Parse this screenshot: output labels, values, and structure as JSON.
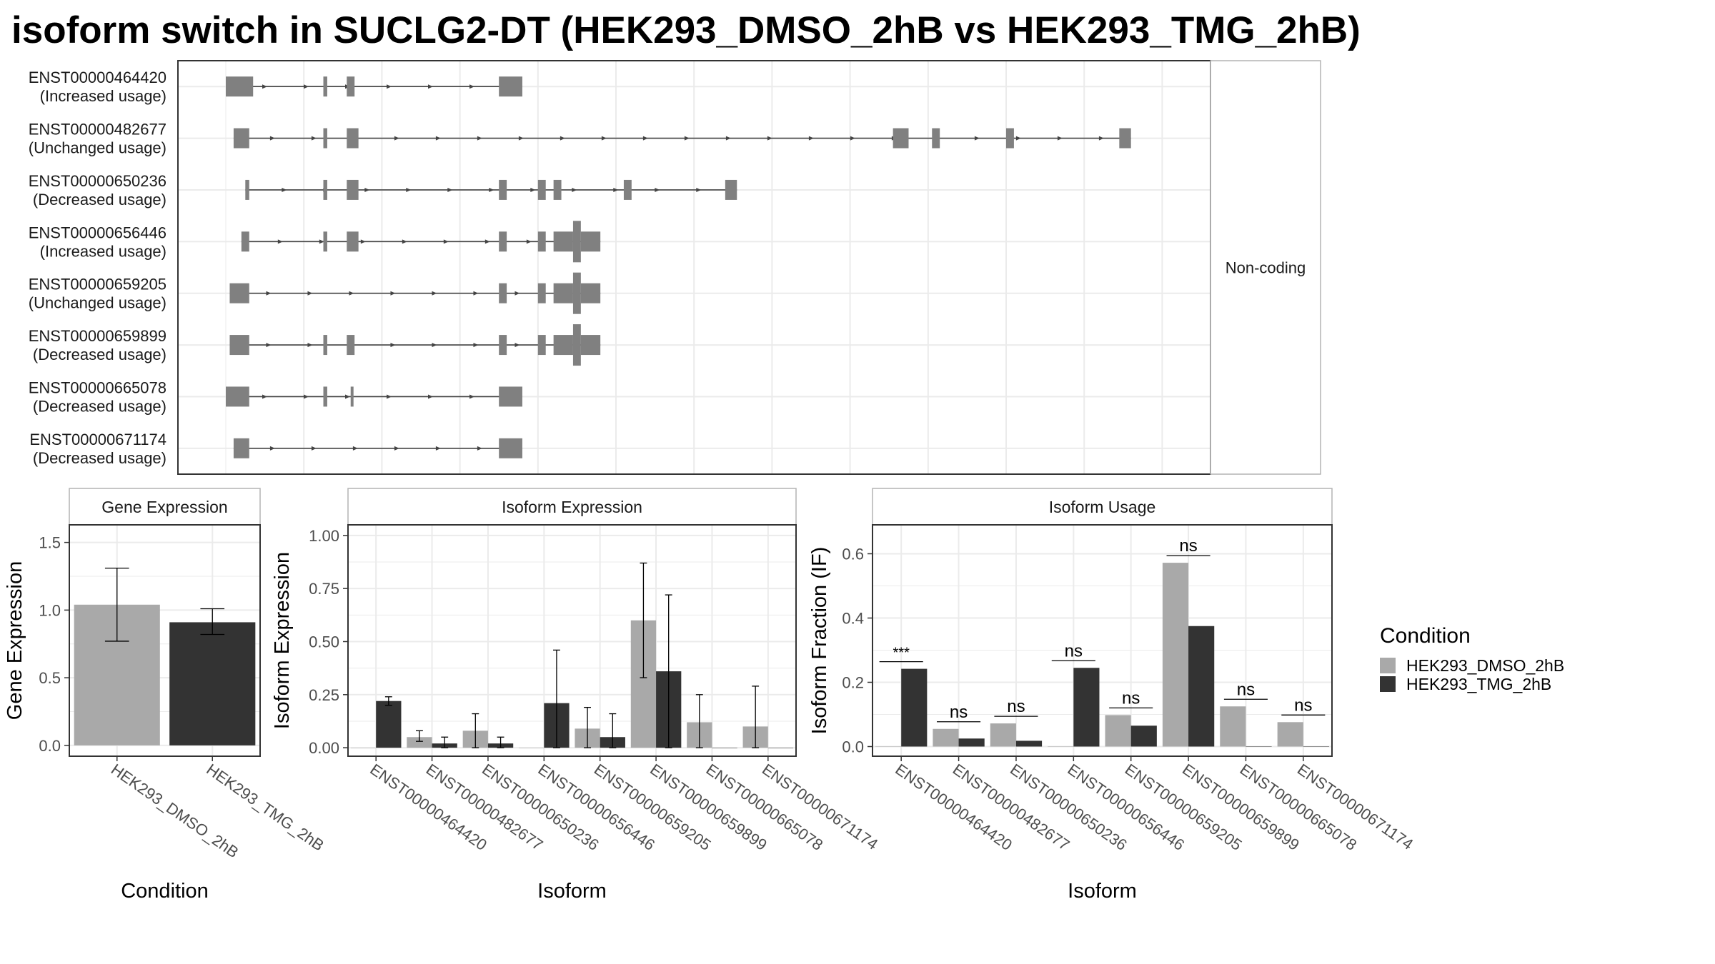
{
  "title": "isoform switch in SUCLG2-DT (HEK293_DMSO_2hB vs HEK293_TMG_2hB)",
  "colors": {
    "exon": "#808080",
    "intron": "#444444",
    "dmso": "#a9a9a9",
    "tmg": "#333333",
    "grid": "#ebebeb",
    "panel_border": "#333333",
    "strip_fill": "#ffffff"
  },
  "chart_data": [
    {
      "id": "transcript_structure",
      "type": "diagram",
      "facet_label": "Non-coding",
      "transcripts": [
        {
          "id": "ENST00000464420",
          "usage": "(Increased usage)",
          "exons": [
            [
              0,
              0.7,
              "n"
            ],
            [
              2.5,
              2.6,
              "n"
            ],
            [
              3.1,
              3.3,
              "n"
            ],
            [
              7.0,
              7.6,
              "n"
            ]
          ]
        },
        {
          "id": "ENST00000482677",
          "usage": "(Unchanged usage)",
          "exons": [
            [
              0.2,
              0.6,
              "n"
            ],
            [
              2.5,
              2.6,
              "n"
            ],
            [
              3.1,
              3.4,
              "n"
            ],
            [
              17.1,
              17.5,
              "n"
            ],
            [
              18.1,
              18.3,
              "n"
            ],
            [
              20.0,
              20.2,
              "n"
            ],
            [
              22.9,
              23.2,
              "n"
            ]
          ]
        },
        {
          "id": "ENST00000650236",
          "usage": "(Decreased usage)",
          "exons": [
            [
              0.5,
              0.6,
              "n"
            ],
            [
              2.5,
              2.6,
              "n"
            ],
            [
              3.1,
              3.4,
              "n"
            ],
            [
              7.0,
              7.2,
              "n"
            ],
            [
              8.0,
              8.2,
              "n"
            ],
            [
              8.4,
              8.6,
              "n"
            ],
            [
              10.2,
              10.4,
              "n"
            ],
            [
              12.8,
              13.1,
              "n"
            ]
          ]
        },
        {
          "id": "ENST00000656446",
          "usage": "(Increased usage)",
          "exons": [
            [
              0.4,
              0.6,
              "n"
            ],
            [
              2.5,
              2.6,
              "n"
            ],
            [
              3.1,
              3.4,
              "n"
            ],
            [
              7.0,
              7.2,
              "n"
            ],
            [
              8.0,
              8.2,
              "n"
            ],
            [
              8.4,
              8.9,
              "n"
            ],
            [
              8.9,
              9.1,
              "w"
            ],
            [
              9.1,
              9.6,
              "n"
            ]
          ]
        },
        {
          "id": "ENST00000659205",
          "usage": "(Unchanged usage)",
          "exons": [
            [
              0.1,
              0.6,
              "n"
            ],
            [
              7.0,
              7.2,
              "n"
            ],
            [
              8.0,
              8.2,
              "n"
            ],
            [
              8.4,
              8.9,
              "n"
            ],
            [
              8.9,
              9.1,
              "w"
            ],
            [
              9.1,
              9.6,
              "n"
            ]
          ]
        },
        {
          "id": "ENST00000659899",
          "usage": "(Decreased usage)",
          "exons": [
            [
              0.1,
              0.6,
              "n"
            ],
            [
              2.5,
              2.6,
              "n"
            ],
            [
              3.1,
              3.3,
              "n"
            ],
            [
              7.0,
              7.2,
              "n"
            ],
            [
              8.0,
              8.2,
              "n"
            ],
            [
              8.4,
              8.9,
              "n"
            ],
            [
              8.9,
              9.1,
              "w"
            ],
            [
              9.1,
              9.6,
              "n"
            ]
          ]
        },
        {
          "id": "ENST00000665078",
          "usage": "(Decreased usage)",
          "exons": [
            [
              0,
              0.6,
              "n"
            ],
            [
              2.5,
              2.6,
              "n"
            ],
            [
              3.2,
              3.25,
              "n"
            ],
            [
              7.0,
              7.6,
              "n"
            ]
          ]
        },
        {
          "id": "ENST00000671174",
          "usage": "(Decreased usage)",
          "exons": [
            [
              0.2,
              0.6,
              "n"
            ],
            [
              7.0,
              7.6,
              "n"
            ]
          ]
        }
      ]
    },
    {
      "id": "gene_expression",
      "type": "bar",
      "strip": "Gene Expression",
      "xlabel": "Condition",
      "ylabel": "Gene Expression",
      "ylim": [
        -0.08,
        1.63
      ],
      "yticks": [
        "0.0",
        "0.5",
        "1.0",
        "1.5"
      ],
      "categories": [
        "HEK293_DMSO_2hB",
        "HEK293_TMG_2hB"
      ],
      "values": [
        1.04,
        0.91
      ],
      "errors": [
        [
          0.77,
          1.31
        ],
        [
          0.82,
          1.01
        ]
      ]
    },
    {
      "id": "isoform_expression",
      "type": "bar",
      "strip": "Isoform Expression",
      "xlabel": "Isoform",
      "ylabel": "Isoform Expression",
      "ylim": [
        -0.04,
        1.05
      ],
      "yticks": [
        "0.00",
        "0.25",
        "0.50",
        "0.75",
        "1.00"
      ],
      "categories": [
        "ENST00000464420",
        "ENST00000482677",
        "ENST00000650236",
        "ENST00000656446",
        "ENST00000659205",
        "ENST00000659899",
        "ENST00000665078",
        "ENST00000671174"
      ],
      "series": [
        {
          "name": "HEK293_DMSO_2hB",
          "values": [
            0.0,
            0.05,
            0.08,
            0.0,
            0.09,
            0.6,
            0.12,
            0.1
          ],
          "errors": [
            null,
            [
              0.03,
              0.08
            ],
            [
              0.0,
              0.16
            ],
            null,
            [
              0.0,
              0.19
            ],
            [
              0.33,
              0.87
            ],
            [
              0.0,
              0.25
            ],
            [
              0.0,
              0.29
            ]
          ]
        },
        {
          "name": "HEK293_TMG_2hB",
          "values": [
            0.22,
            0.02,
            0.02,
            0.21,
            0.05,
            0.36,
            0.0,
            0.0
          ],
          "errors": [
            [
              0.2,
              0.24
            ],
            [
              0.0,
              0.05
            ],
            [
              0.0,
              0.05
            ],
            [
              0.0,
              0.46
            ],
            [
              0.0,
              0.16
            ],
            [
              0.0,
              0.72
            ],
            null,
            null
          ]
        }
      ]
    },
    {
      "id": "isoform_usage",
      "type": "bar",
      "strip": "Isoform Usage",
      "xlabel": "Isoform",
      "ylabel": "Isoform Fraction (IF)",
      "ylim": [
        -0.03,
        0.69
      ],
      "yticks": [
        "0.0",
        "0.2",
        "0.4",
        "0.6"
      ],
      "categories": [
        "ENST00000464420",
        "ENST00000482677",
        "ENST00000650236",
        "ENST00000656446",
        "ENST00000659205",
        "ENST00000659899",
        "ENST00000665078",
        "ENST00000671174"
      ],
      "series": [
        {
          "name": "HEK293_DMSO_2hB",
          "values": [
            0.0,
            0.055,
            0.072,
            0.0,
            0.098,
            0.572,
            0.125,
            0.076
          ]
        },
        {
          "name": "HEK293_TMG_2hB",
          "values": [
            0.242,
            0.025,
            0.018,
            0.245,
            0.065,
            0.375,
            0.0,
            0.0
          ]
        }
      ],
      "significance": [
        "***",
        "ns",
        "ns",
        "ns",
        "ns",
        "ns",
        "ns",
        "ns"
      ]
    }
  ],
  "legend": {
    "title": "Condition",
    "items": [
      "HEK293_DMSO_2hB",
      "HEK293_TMG_2hB"
    ]
  }
}
